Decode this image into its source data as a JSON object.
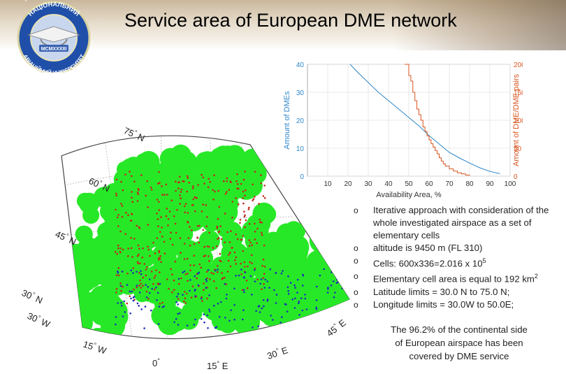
{
  "header": {
    "title": "Service area of European DME network",
    "logo_text": [
      "НАЦІОНАЛЬНИЙ",
      "АВІАЦІЙНИЙ УНІВЕРСИТЕТ",
      "MCMXXXIII"
    ]
  },
  "colors": {
    "left_series": "#2e86c8",
    "right_series": "#d9531e",
    "coverage": "#27e827",
    "dme_ground_red": "#c0281c",
    "dme_ground_blue": "#1c2fb8"
  },
  "chart_data": [
    {
      "type": "line",
      "title": "",
      "xlabel": "Availability Area, %",
      "ylabel_left": "Amount of DMEs",
      "ylabel_right": "Amount of DME/DME pairs",
      "xlim": [
        0,
        100
      ],
      "ylim_left": [
        0,
        40
      ],
      "ylim_right": [
        0,
        200
      ],
      "x_ticks": [
        10,
        20,
        30,
        40,
        50,
        60,
        70,
        80,
        90,
        100
      ],
      "y_ticks_left": [
        0,
        10,
        20,
        30,
        40
      ],
      "y_ticks_right": [
        0,
        50,
        100,
        150,
        200
      ],
      "grid": true,
      "series": [
        {
          "axis": "left",
          "x": [
            21,
            25,
            30,
            35,
            40,
            45,
            50,
            55,
            60,
            65,
            70,
            75,
            80,
            85,
            90,
            95
          ],
          "y": [
            40,
            37,
            33.5,
            30,
            27,
            24,
            21,
            18,
            14.5,
            11.5,
            8.5,
            6.5,
            4.7,
            3,
            1.7,
            0.9
          ]
        },
        {
          "axis": "right",
          "step": true,
          "x": [
            48,
            50,
            51,
            52,
            53,
            54,
            55,
            56,
            57,
            58,
            59,
            60,
            61,
            62,
            63,
            64,
            65,
            66,
            67,
            68,
            70,
            72,
            74,
            76,
            78,
            80
          ],
          "y": [
            200,
            180,
            170,
            150,
            135,
            120,
            110,
            100,
            88,
            80,
            72,
            65,
            58,
            52,
            46,
            40,
            33,
            27,
            22,
            18,
            13,
            9,
            6,
            4,
            2,
            1
          ]
        }
      ]
    },
    {
      "type": "scatter",
      "map_labels": {
        "latitudes": [
          "75 N",
          "60 N",
          "45 N",
          "30 N"
        ],
        "longitudes": [
          "30 W",
          "15 W",
          "0",
          "15 E",
          "30 E",
          "45 E"
        ]
      }
    }
  ],
  "bullets": [
    "Iterative approach with consideration of the whole investigated airspace as a set of elementary cells",
    "altitude is 9450 m (FL 310)",
    "Cells: 600x336=2.016 x 10",
    "Elementary cell area is equal to 192 km",
    "Latitude limits = 30.0 N to 75.0 N;",
    "Longitude limits = 30.0W to 50.0E;"
  ],
  "bullet_superscripts": {
    "cells": "5",
    "area": "2"
  },
  "conclusion": "The 96.2% of the continental side of European airspace has been covered by DME service"
}
